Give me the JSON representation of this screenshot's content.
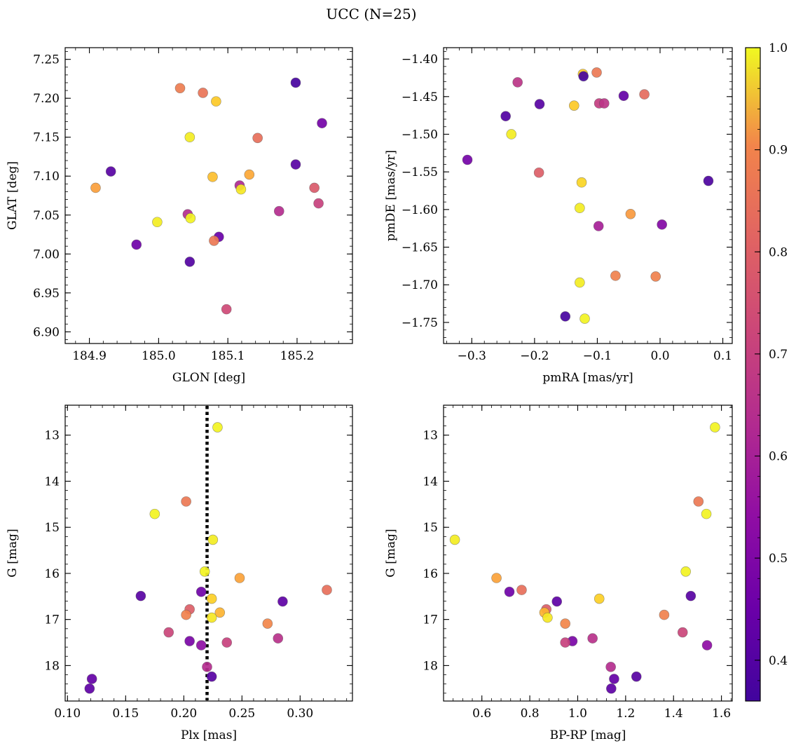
{
  "figure": {
    "title": "UCC (N=25)"
  },
  "colorbar": {
    "range": [
      0.36,
      1.0
    ],
    "ticks": [
      0.4,
      0.5,
      0.6,
      0.7,
      0.8,
      0.9,
      1.0
    ],
    "tick_labels": [
      "0.4",
      "0.5",
      "0.6",
      "0.7",
      "0.8",
      "0.9",
      "1.0"
    ],
    "colormap": "plasma"
  },
  "chart_data": [
    {
      "type": "scatter",
      "id": "glon-glat",
      "xlabel": "GLON [deg]",
      "ylabel": "GLAT [deg]",
      "xlim": [
        184.865,
        185.28
      ],
      "ylim": [
        6.885,
        7.265
      ],
      "xticks": [
        184.9,
        185.0,
        185.1,
        185.2
      ],
      "xtick_labels": [
        "184.9",
        "185.0",
        "185.1",
        "185.2"
      ],
      "yticks": [
        6.9,
        6.95,
        7.0,
        7.05,
        7.1,
        7.15,
        7.2,
        7.25
      ],
      "ytick_labels": [
        "6.90",
        "6.95",
        "7.00",
        "7.05",
        "7.10",
        "7.15",
        "7.20",
        "7.25"
      ],
      "x": [
        185.198,
        185.031,
        185.064,
        185.083,
        185.236,
        185.045,
        185.143,
        184.931,
        185.198,
        184.909,
        185.078,
        185.131,
        185.117,
        185.119,
        185.225,
        185.231,
        185.174,
        185.042,
        185.046,
        184.998,
        185.087,
        184.968,
        185.08,
        185.045,
        185.098
      ],
      "y": [
        7.22,
        7.213,
        7.207,
        7.196,
        7.168,
        7.15,
        7.149,
        7.106,
        7.115,
        7.085,
        7.099,
        7.102,
        7.088,
        7.083,
        7.085,
        7.065,
        7.055,
        7.051,
        7.046,
        7.041,
        7.022,
        7.012,
        7.017,
        6.99,
        6.929
      ],
      "c": [
        0.37,
        0.77,
        0.75,
        0.92,
        0.45,
        0.98,
        0.74,
        0.4,
        0.4,
        0.84,
        0.9,
        0.86,
        0.57,
        0.97,
        0.69,
        0.63,
        0.58,
        0.58,
        0.99,
        0.98,
        0.43,
        0.44,
        0.76,
        0.39,
        0.65
      ]
    },
    {
      "type": "scatter",
      "id": "pmra-pmde",
      "xlabel": "pmRA [mas/yr]",
      "ylabel": "pmDE [mas/yr]",
      "xlim": [
        -0.345,
        0.115
      ],
      "ylim": [
        -1.778,
        -1.385
      ],
      "xticks": [
        -0.3,
        -0.2,
        -0.1,
        0.0,
        0.1
      ],
      "xtick_labels": [
        "−0.3",
        "−0.2",
        "−0.1",
        "0.0",
        "0.1"
      ],
      "yticks": [
        -1.75,
        -1.7,
        -1.65,
        -1.6,
        -1.55,
        -1.5,
        -1.45,
        -1.4
      ],
      "ytick_labels": [
        "−1.75",
        "−1.70",
        "−1.65",
        "−1.60",
        "−1.55",
        "−1.50",
        "−1.45",
        "−1.40"
      ],
      "x": [
        -0.123,
        -0.122,
        -0.101,
        -0.227,
        -0.058,
        -0.025,
        -0.246,
        -0.192,
        -0.097,
        -0.089,
        -0.137,
        -0.237,
        -0.307,
        -0.193,
        -0.125,
        0.077,
        -0.128,
        -0.047,
        -0.098,
        0.003,
        -0.071,
        -0.007,
        -0.128,
        -0.151,
        -0.12
      ],
      "y": [
        -1.42,
        -1.423,
        -1.418,
        -1.431,
        -1.449,
        -1.447,
        -1.476,
        -1.46,
        -1.459,
        -1.459,
        -1.462,
        -1.5,
        -1.534,
        -1.551,
        -1.564,
        -1.562,
        -1.598,
        -1.606,
        -1.622,
        -1.62,
        -1.688,
        -1.689,
        -1.697,
        -1.742,
        -1.745
      ],
      "c": [
        0.92,
        0.37,
        0.76,
        0.6,
        0.42,
        0.73,
        0.39,
        0.4,
        0.62,
        0.6,
        0.92,
        0.98,
        0.45,
        0.7,
        0.94,
        0.38,
        0.98,
        0.83,
        0.55,
        0.48,
        0.78,
        0.78,
        0.98,
        0.37,
        0.99
      ]
    },
    {
      "type": "scatter",
      "id": "plx-g",
      "xlabel": "Plx [mas]",
      "ylabel": "G [mag]",
      "xlim": [
        0.098,
        0.345
      ],
      "ylim": [
        18.77,
        12.35
      ],
      "y_inverted": true,
      "xticks": [
        0.1,
        0.15,
        0.2,
        0.25,
        0.3
      ],
      "xtick_labels": [
        "0.10",
        "0.15",
        "0.20",
        "0.25",
        "0.30"
      ],
      "yticks": [
        13,
        14,
        15,
        16,
        17,
        18
      ],
      "ytick_labels": [
        "13",
        "14",
        "15",
        "16",
        "17",
        "18"
      ],
      "vline": 0.22,
      "x": [
        0.229,
        0.202,
        0.175,
        0.225,
        0.218,
        0.248,
        0.323,
        0.163,
        0.285,
        0.215,
        0.205,
        0.224,
        0.231,
        0.202,
        0.224,
        0.272,
        0.187,
        0.281,
        0.205,
        0.237,
        0.215,
        0.22,
        0.224,
        0.121,
        0.119
      ],
      "y": [
        12.83,
        14.44,
        14.71,
        15.27,
        15.96,
        16.1,
        16.36,
        16.49,
        16.61,
        16.4,
        16.78,
        16.55,
        16.85,
        16.9,
        16.96,
        17.09,
        17.28,
        17.41,
        17.47,
        17.5,
        17.56,
        18.03,
        18.24,
        18.29,
        18.5
      ],
      "c": [
        0.99,
        0.76,
        0.99,
        0.98,
        0.99,
        0.85,
        0.74,
        0.4,
        0.41,
        0.44,
        0.7,
        0.93,
        0.88,
        0.78,
        0.97,
        0.79,
        0.64,
        0.59,
        0.46,
        0.63,
        0.5,
        0.58,
        0.4,
        0.42,
        0.41
      ]
    },
    {
      "type": "scatter",
      "id": "bprp-g",
      "xlabel": "BP-RP [mag]",
      "ylabel": "G [mag]",
      "xlim": [
        0.44,
        1.645
      ],
      "ylim": [
        18.77,
        12.35
      ],
      "y_inverted": true,
      "xticks": [
        0.6,
        0.8,
        1.0,
        1.2,
        1.4,
        1.6
      ],
      "xtick_labels": [
        "0.6",
        "0.8",
        "1.0",
        "1.2",
        "1.4",
        "1.6"
      ],
      "yticks": [
        13,
        14,
        15,
        16,
        17,
        18
      ],
      "ytick_labels": [
        "13",
        "14",
        "15",
        "16",
        "17",
        "18"
      ],
      "x": [
        1.573,
        1.504,
        1.537,
        0.487,
        1.451,
        0.661,
        0.766,
        0.715,
        1.472,
        0.913,
        0.869,
        1.09,
        0.861,
        1.361,
        0.874,
        0.948,
        1.438,
        1.062,
        0.978,
        0.948,
        1.54,
        1.138,
        1.245,
        1.152,
        1.14
      ],
      "y": [
        12.83,
        14.44,
        14.71,
        15.27,
        15.96,
        16.1,
        16.36,
        16.4,
        16.49,
        16.61,
        16.78,
        16.55,
        16.85,
        16.9,
        16.96,
        17.09,
        17.28,
        17.41,
        17.47,
        17.5,
        17.56,
        18.03,
        18.24,
        18.29,
        18.5
      ],
      "c": [
        0.99,
        0.76,
        0.99,
        0.98,
        0.99,
        0.85,
        0.74,
        0.44,
        0.4,
        0.41,
        0.7,
        0.93,
        0.88,
        0.78,
        0.97,
        0.79,
        0.64,
        0.59,
        0.46,
        0.63,
        0.5,
        0.58,
        0.4,
        0.42,
        0.41
      ]
    }
  ]
}
